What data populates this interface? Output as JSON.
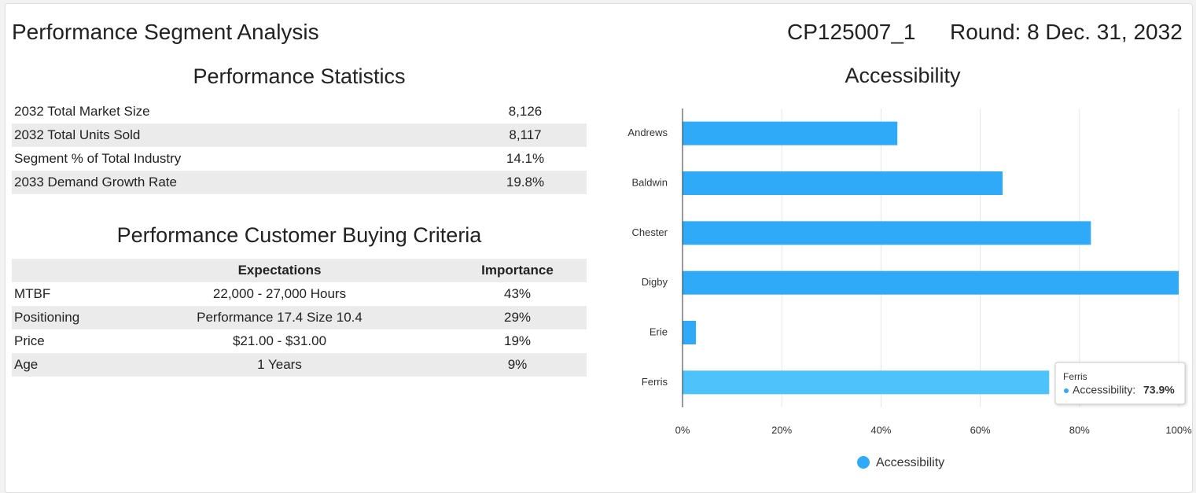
{
  "header": {
    "title": "Performance Segment Analysis",
    "id": "CP125007_1",
    "round": "Round: 8 Dec. 31, 2032"
  },
  "stats": {
    "title": "Performance Statistics",
    "rows": [
      [
        "2032 Total Market Size",
        "8,126"
      ],
      [
        "2032 Total Units Sold",
        "8,117"
      ],
      [
        "Segment % of Total Industry",
        "14.1%"
      ],
      [
        "2033 Demand Growth Rate",
        "19.8%"
      ]
    ]
  },
  "criteria": {
    "title": "Performance Customer Buying Criteria",
    "headers": [
      "Expectations",
      "Importance"
    ],
    "rows": [
      [
        "MTBF",
        "22,000 - 27,000 Hours",
        "43%"
      ],
      [
        "Positioning",
        "Performance 17.4 Size 10.4",
        "29%"
      ],
      [
        "Price",
        "$21.00 - $31.00",
        "19%"
      ],
      [
        "Age",
        "1 Years",
        "9%"
      ]
    ]
  },
  "chart_data": {
    "type": "hbar",
    "title": "Accessibility",
    "categories": [
      "Andrews",
      "Baldwin",
      "Chester",
      "Digby",
      "Erie",
      "Ferris"
    ],
    "series": [
      {
        "name": "Accessibility",
        "color": "#2eaaf9",
        "hover_color": "#4dc2fb",
        "values": [
          43.3,
          64.5,
          82.3,
          100,
          2.7,
          73.9
        ]
      }
    ],
    "xlim": [
      0,
      100
    ],
    "xticks": [
      {
        "value": 0,
        "label": "0%"
      },
      {
        "value": 20,
        "label": "20%"
      },
      {
        "value": 40,
        "label": "40%"
      },
      {
        "value": 60,
        "label": "60%"
      },
      {
        "value": 80,
        "label": "80%"
      },
      {
        "value": 100,
        "label": "100%"
      }
    ],
    "grid": true,
    "legend": "bottom",
    "tooltip": {
      "category": "Ferris",
      "label": "Accessibility:",
      "value_label": "73.9%"
    }
  }
}
